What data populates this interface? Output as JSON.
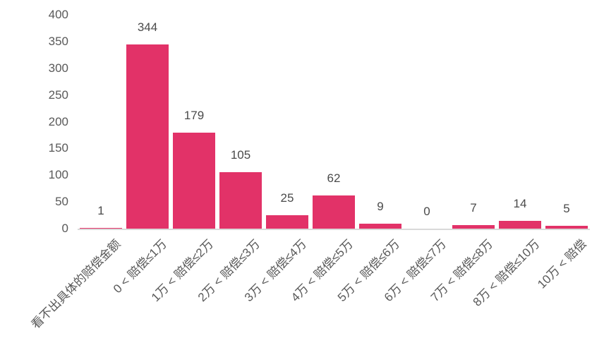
{
  "chart_data": {
    "type": "bar",
    "title": "",
    "xlabel": "",
    "ylabel": "",
    "categories": [
      "看不出具体的赔偿金额",
      "0 < 赔偿≤1万",
      "1万 < 赔偿≤2万",
      "2万 < 赔偿≤3万",
      "3万 < 赔偿≤4万",
      "4万 < 赔偿≤5万",
      "5万 < 赔偿≤6万",
      "6万 < 赔偿≤7万",
      "7万 < 赔偿≤8万",
      "8万 < 赔偿≤10万",
      "10万 < 赔偿"
    ],
    "values": [
      1,
      344,
      179,
      105,
      25,
      62,
      9,
      0,
      7,
      14,
      5
    ],
    "ylim": [
      0,
      400
    ],
    "yticks": [
      0,
      50,
      100,
      150,
      200,
      250,
      300,
      350,
      400
    ],
    "grid": "off",
    "legend": "none",
    "colors": {
      "bar": "#e23268",
      "axis_line": "#d9d9d9",
      "tick_text": "#595959",
      "value_text": "#4a4a4a",
      "background": "#ffffff"
    }
  }
}
